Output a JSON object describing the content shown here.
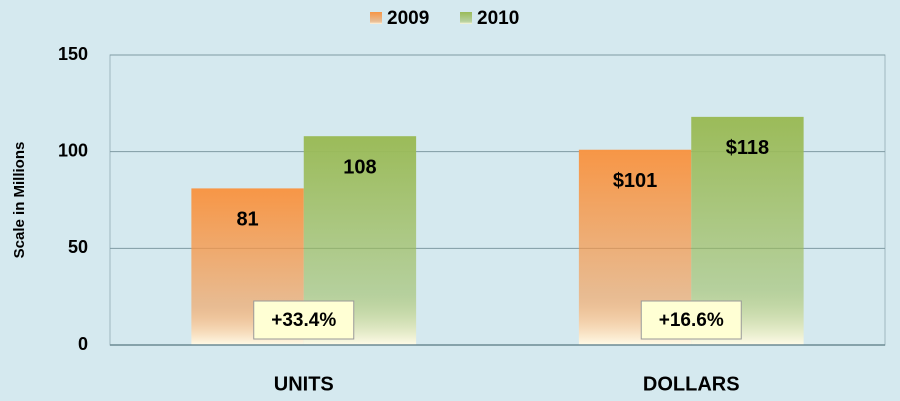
{
  "chart_data": {
    "type": "bar",
    "categories": [
      "UNITS",
      "DOLLARS"
    ],
    "series": [
      {
        "name": "2009",
        "color": "#f79646",
        "values": [
          81,
          101
        ],
        "value_labels": [
          "81",
          "$101"
        ]
      },
      {
        "name": "2010",
        "color": "#9bbb59",
        "values": [
          108,
          118
        ],
        "value_labels": [
          "108",
          "$118"
        ]
      }
    ],
    "annotations": [
      "+33.4%",
      "+16.6%"
    ],
    "y_label": "Scale in Millions",
    "ylim": [
      0,
      150
    ],
    "yticks": [
      0,
      50,
      100,
      150
    ],
    "grid": true,
    "legend": "top"
  }
}
